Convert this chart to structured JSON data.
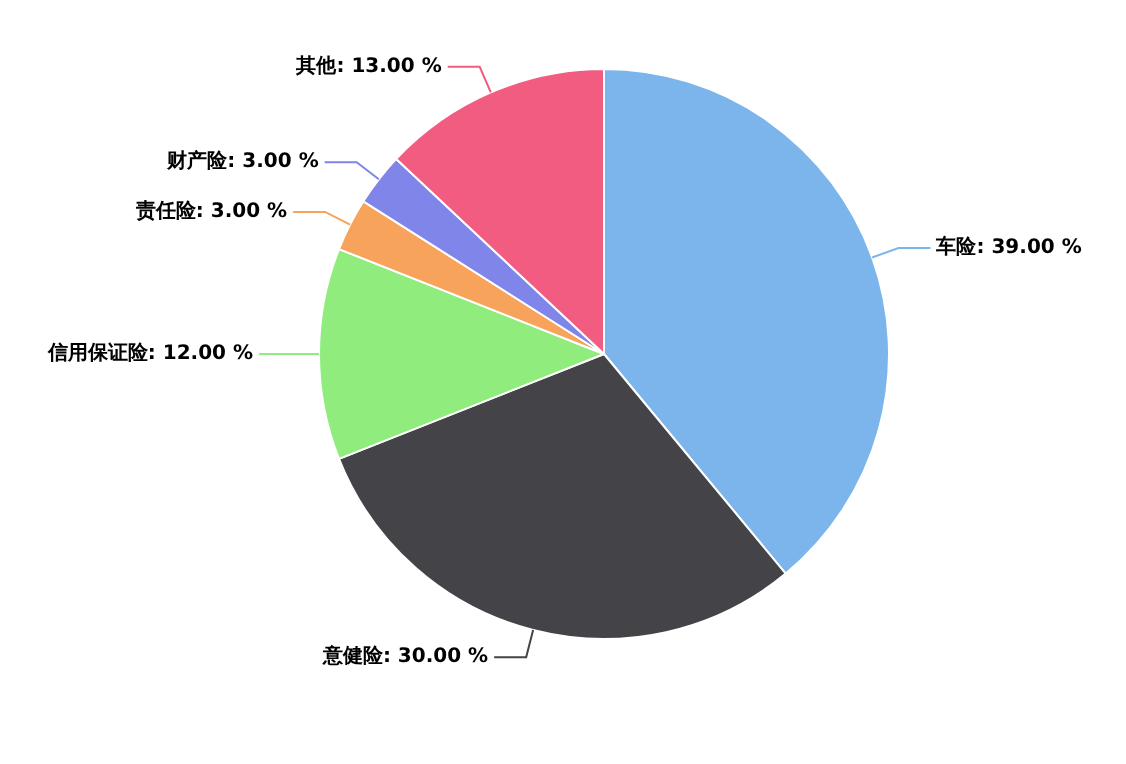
{
  "chart_data": {
    "type": "pie",
    "categories": [
      "车险",
      "意健险",
      "信用保证险",
      "责任险",
      "财产险",
      "其他"
    ],
    "values": [
      39,
      30,
      12,
      3,
      3,
      13
    ],
    "value_labels": [
      "39.00 %",
      "30.00 %",
      "12.00 %",
      "3.00 %",
      "3.00 %",
      "13.00 %"
    ],
    "colors": [
      "#7cb5ec",
      "#434348",
      "#90ed7d",
      "#f7a35c",
      "#8085e9",
      "#f15c80"
    ],
    "legend": false
  }
}
